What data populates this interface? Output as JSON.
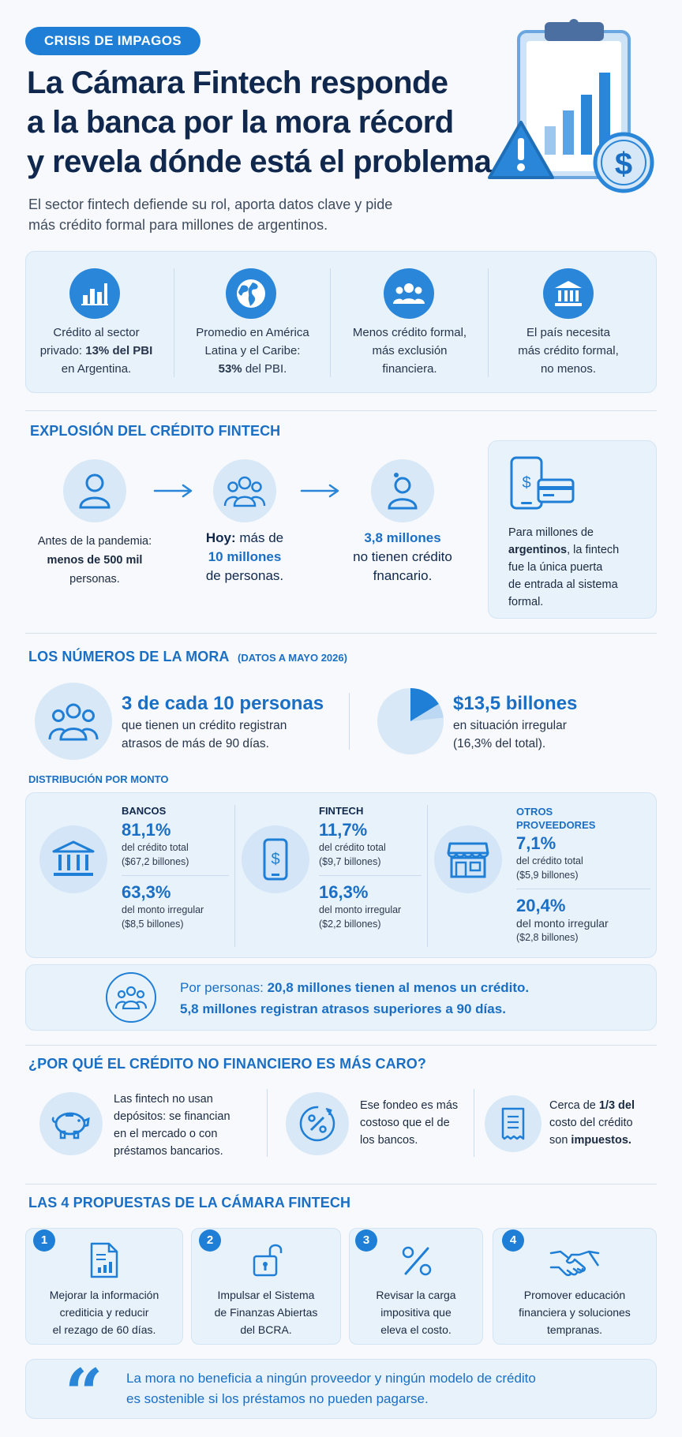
{
  "header": {
    "tag": "CRISIS DE IMPAGOS",
    "title_lines": [
      "La Cámara Fintech responde",
      "a la banca por la mora récord",
      "y revela dónde está el problema"
    ],
    "subtitle_lines": [
      "El sector fintech defiende su rol, aporta datos clave y pide",
      "más crédito formal para millones de argentinos."
    ]
  },
  "intro_cards": [
    {
      "icon": "bar-chart-icon",
      "lines": [
        "Crédito al sector",
        "privado: ",
        "13% del PBI",
        "en Argentina."
      ]
    },
    {
      "icon": "globe-icon",
      "lines": [
        "Promedio en América",
        "Latina y el Caribe:",
        "53%",
        " del PBI."
      ]
    },
    {
      "icon": "people-icon",
      "lines": [
        "Menos crédito formal,",
        "más exclusión",
        "financiera."
      ]
    },
    {
      "icon": "bank-icon",
      "lines": [
        "El país necesita",
        "más crédito formal,",
        "no menos."
      ]
    }
  ],
  "explosion": {
    "title": "EXPLOSIÓN DEL CRÉDITO FINTECH",
    "before": {
      "line1": "Antes de la pandemia:",
      "line2": "menos de 500 mil",
      "line3": "personas."
    },
    "today": {
      "prefix": "Hoy:",
      "rest": " más de",
      "line2": "10 millones",
      "line3": "de personas."
    },
    "no_credit": {
      "line1": "3,8 millones",
      "line2": "no tienen crédito",
      "line3": "fnancario."
    },
    "note": {
      "line1": "Para millones de",
      "line2_bold": "argentinos",
      "line2_rest": ", la fintech",
      "line3": "fue la única puerta",
      "line4": "de entrada al sistema",
      "line5": "formal."
    }
  },
  "mora": {
    "title": "LOS NÚMEROS DE LA MORA",
    "subtitle": "(DATOS A MAYO 2026)",
    "stat1": {
      "headline": "3 de cada 10 personas",
      "line1": "que tienen un crédito registran",
      "line2": "atrasos de más de 90 días."
    },
    "stat2": {
      "headline": "$13,5 billones",
      "line1": "en situación irregular",
      "line2": "(16,3% del total)."
    },
    "pie_share_percent": 16.3,
    "distribution_title": "DISTRIBUCIÓN POR MONTO",
    "providers": [
      {
        "name": "BANCOS",
        "credit_pct": "81,1%",
        "credit_label": "del crédito total",
        "credit_amount": "($67,2 billones)",
        "irregular_pct": "63,3%",
        "irregular_label": "del monto irregular",
        "irregular_amount": "($8,5 billones)"
      },
      {
        "name": "FINTECH",
        "credit_pct": "11,7%",
        "credit_label": "del crédito total",
        "credit_amount": "($9,7 billones)",
        "irregular_pct": "16,3%",
        "irregular_label": "del monto irregular",
        "irregular_amount": "($2,2 billones)"
      },
      {
        "name": "OTROS",
        "name2": "PROVEEDORES",
        "credit_pct": "7,1%",
        "credit_label": "del crédito total",
        "credit_amount": "($5,9 billones)",
        "irregular_pct": "20,4%",
        "irregular_label": "del monto irregular",
        "irregular_amount": "($2,8 billones)"
      }
    ],
    "people_banner": {
      "prefix": "Por personas: ",
      "bold1": "20,8 millones tienen al menos un crédito.",
      "line2": "5,8 millones registran atrasos superiores a 90 días."
    }
  },
  "why": {
    "title": "¿POR QUÉ EL CRÉDITO NO FINANCIERO ES MÁS CARO?",
    "items": [
      {
        "icon": "piggy-bank-icon",
        "lines": [
          "Las fintech no usan",
          "depósitos: se financian",
          "en el mercado o con",
          "préstamos bancarios."
        ]
      },
      {
        "icon": "percent-icon",
        "lines": [
          "Ese fondeo es más",
          "costoso que el de",
          "los bancos."
        ]
      },
      {
        "icon": "receipt-icon",
        "l1a": "Cerca de ",
        "l1b": "1/3 del",
        "l2": "costo del crédito",
        "l3a": "son ",
        "l3b": "impuestos."
      }
    ]
  },
  "proposals": {
    "title": "LAS 4 PROPUESTAS DE LA CÁMARA FINTECH",
    "items": [
      {
        "n": "1",
        "icon": "report-icon",
        "lines": [
          "Mejorar la información",
          "crediticia y reducir",
          "el rezago de 60 días."
        ]
      },
      {
        "n": "2",
        "icon": "unlock-icon",
        "lines": [
          "Impulsar el Sistema",
          "de Finanzas Abiertas",
          "del BCRA."
        ]
      },
      {
        "n": "3",
        "icon": "percent-icon",
        "lines": [
          "Revisar la carga",
          "impositiva que",
          "eleva el costo."
        ]
      },
      {
        "n": "4",
        "icon": "handshake-icon",
        "lines": [
          "Promover educación",
          "financiera y soluciones",
          "tempranas."
        ]
      }
    ]
  },
  "quote": {
    "mark": "“",
    "line1": "La mora no beneficia a ningún proveedor y ningún modelo de crédito",
    "line2": "es sostenible si los préstamos no pueden pagarse."
  },
  "colors": {
    "accent": "#1f7fd6",
    "navy": "#10284d",
    "card": "#e8f2fb"
  }
}
